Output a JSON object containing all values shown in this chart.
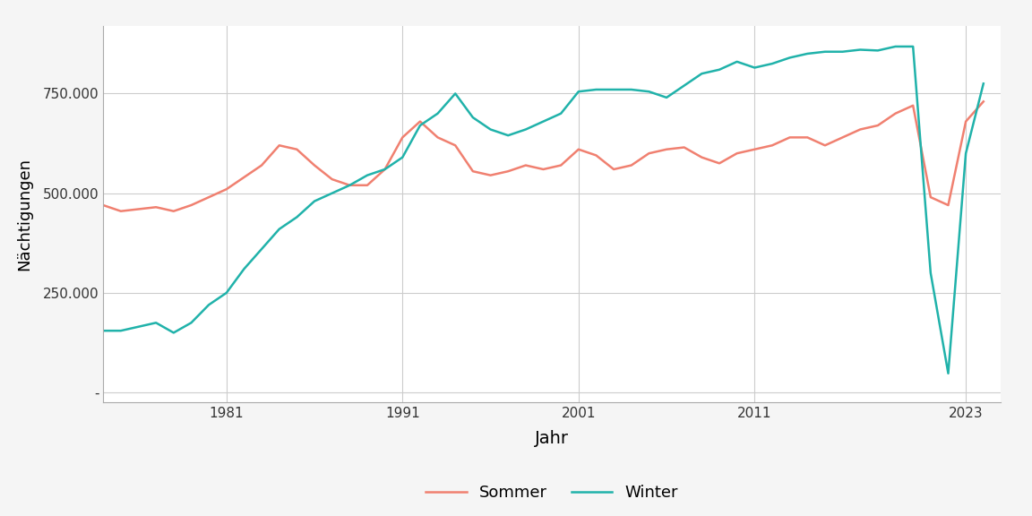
{
  "title": "",
  "xlabel": "Jahr",
  "ylabel": "Nächtigungen",
  "background_color": "#f5f5f5",
  "plot_background_color": "#ffffff",
  "grid_color": "#cccccc",
  "sommer_color": "#F08070",
  "winter_color": "#20B2AA",
  "legend_labels": [
    "Sommer",
    "Winter"
  ],
  "x_ticks": [
    1981,
    1991,
    2001,
    2011,
    2023
  ],
  "y_ticks": [
    0,
    250000,
    500000,
    750000
  ],
  "y_tick_labels": [
    "-",
    "250.000",
    "500.000",
    "750.000"
  ],
  "years": [
    1974,
    1975,
    1976,
    1977,
    1978,
    1979,
    1980,
    1981,
    1982,
    1983,
    1984,
    1985,
    1986,
    1987,
    1988,
    1989,
    1990,
    1991,
    1992,
    1993,
    1994,
    1995,
    1996,
    1997,
    1998,
    1999,
    2000,
    2001,
    2002,
    2003,
    2004,
    2005,
    2006,
    2007,
    2008,
    2009,
    2010,
    2011,
    2012,
    2013,
    2014,
    2015,
    2016,
    2017,
    2018,
    2019,
    2020,
    2021,
    2022,
    2023,
    2024
  ],
  "sommer": [
    470000,
    455000,
    460000,
    465000,
    455000,
    470000,
    490000,
    510000,
    540000,
    570000,
    620000,
    610000,
    570000,
    535000,
    520000,
    520000,
    560000,
    640000,
    680000,
    640000,
    620000,
    555000,
    545000,
    555000,
    570000,
    560000,
    570000,
    610000,
    595000,
    560000,
    570000,
    600000,
    610000,
    615000,
    590000,
    575000,
    600000,
    610000,
    620000,
    640000,
    640000,
    620000,
    640000,
    660000,
    670000,
    700000,
    720000,
    490000,
    470000,
    680000,
    730000
  ],
  "winter": [
    155000,
    155000,
    165000,
    175000,
    150000,
    175000,
    220000,
    250000,
    310000,
    360000,
    410000,
    440000,
    480000,
    500000,
    520000,
    545000,
    560000,
    590000,
    670000,
    700000,
    750000,
    690000,
    660000,
    645000,
    660000,
    680000,
    700000,
    755000,
    760000,
    760000,
    760000,
    755000,
    740000,
    770000,
    800000,
    810000,
    830000,
    815000,
    825000,
    840000,
    850000,
    855000,
    855000,
    860000,
    858000,
    868000,
    868000,
    300000,
    48000,
    600000,
    775000
  ]
}
